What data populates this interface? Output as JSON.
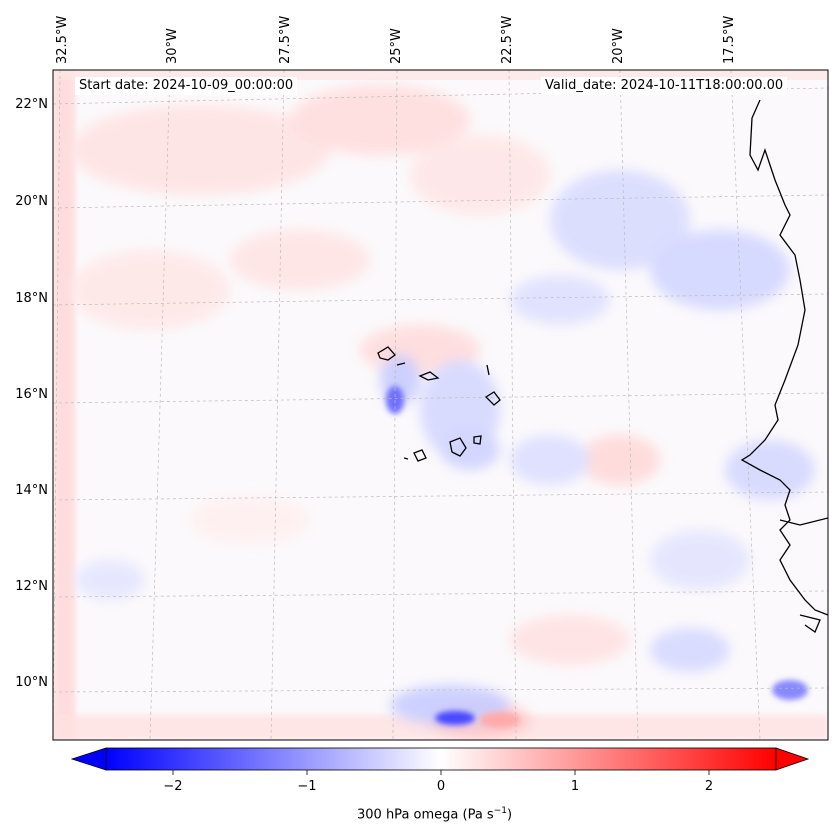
{
  "map": {
    "start_date": "Start date: 2024-10-09_00:00:00",
    "valid_date": "Valid_date: 2024-10-11T18:00:00.00",
    "lon_labels": [
      "32.5°W",
      "30°W",
      "27.5°W",
      "25°W",
      "22.5°W",
      "20°W",
      "17.5°W"
    ],
    "lat_labels": [
      "22°N",
      "20°N",
      "18°N",
      "16°N",
      "14°N",
      "12°N",
      "10°N"
    ],
    "field": "300 hPa omega",
    "colors": {
      "negative": "#0000ff",
      "positive": "#ff0000",
      "coast": "#000000",
      "grid": "#bbbbbb"
    }
  },
  "colorbar": {
    "ticks": [
      "−2",
      "−1",
      "0",
      "1",
      "2"
    ],
    "tick_values": [
      -2,
      -1,
      0,
      1,
      2
    ],
    "range": [
      -2.5,
      2.5
    ],
    "label": "300 hPa omega (Pa s",
    "label_exp": "−1",
    "label_end": ")"
  }
}
